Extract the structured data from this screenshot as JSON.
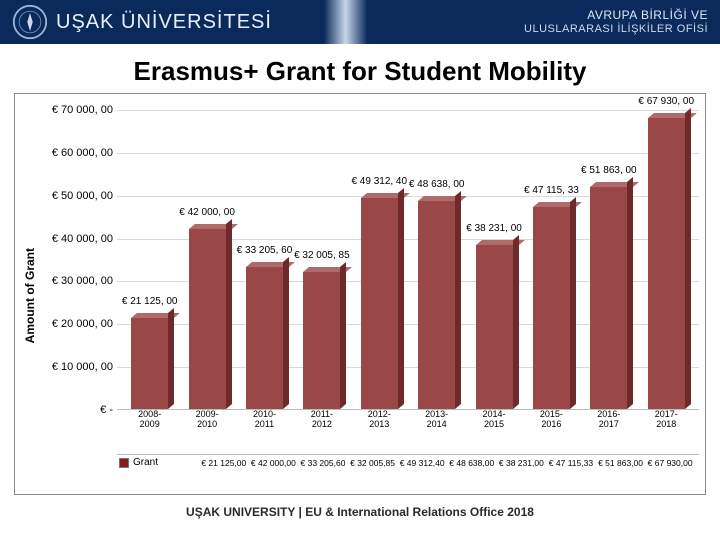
{
  "header": {
    "university_name": "UŞAK ÜNİVERSİTESİ",
    "office_name_line1": "AVRUPA BİRLİĞİ VE",
    "office_name_line2": "ULUSLARARASI İLİŞKİLER OFİSİ",
    "bg_color": "#0a2a5c",
    "text_color": "#e9eef7"
  },
  "title": "Erasmus+ Grant for Student Mobility",
  "footer": "UŞAK UNIVERSITY | EU & International Relations Office 2018",
  "chart": {
    "type": "bar",
    "ylabel": "Amount of Grant",
    "ylim": [
      0,
      70000
    ],
    "ytick_step": 10000,
    "yticks": [
      {
        "v": 0,
        "label": "€  -"
      },
      {
        "v": 10000,
        "label": "€  10 000, 00"
      },
      {
        "v": 20000,
        "label": "€  20 000, 00"
      },
      {
        "v": 30000,
        "label": "€  30 000, 00"
      },
      {
        "v": 40000,
        "label": "€  40 000, 00"
      },
      {
        "v": 50000,
        "label": "€  50 000, 00"
      },
      {
        "v": 60000,
        "label": "€  60 000, 00"
      },
      {
        "v": 70000,
        "label": "€  70 000, 00"
      }
    ],
    "grid_color": "#d9d9d9",
    "background_color": "#ffffff",
    "series_label": "Grant",
    "legend_color": "#8b1a1a",
    "bar_face_color": "#9a4747",
    "bar_top_color": "#b06a6a",
    "bar_side_color": "#6e2a2a",
    "label_prefix": "€  ",
    "data": [
      {
        "period_a": "2008-",
        "period_b": "2009",
        "value": 21125.0,
        "label": "€  21 125, 00",
        "legend": "€ 21 125,00"
      },
      {
        "period_a": "2009-",
        "period_b": "2010",
        "value": 42000.0,
        "label": "€  42 000, 00",
        "legend": "€ 42 000,00"
      },
      {
        "period_a": "2010-",
        "period_b": "2011",
        "value": 33205.6,
        "label": "€  33 205, 60",
        "legend": "€ 33 205,60"
      },
      {
        "period_a": "2011-",
        "period_b": "2012",
        "value": 32005.85,
        "label": "€  32 005, 85",
        "legend": "€ 32 005,85"
      },
      {
        "period_a": "2012-",
        "period_b": "2013",
        "value": 49312.4,
        "label": "€  49 312, 40",
        "legend": "€ 49 312,40"
      },
      {
        "period_a": "2013-",
        "period_b": "2014",
        "value": 48638.0,
        "label": "€  48 638, 00",
        "legend": "€ 48 638,00"
      },
      {
        "period_a": "2014-",
        "period_b": "2015",
        "value": 38231.0,
        "label": "€  38 231, 00",
        "legend": "€ 38 231,00"
      },
      {
        "period_a": "2015-",
        "period_b": "2016",
        "value": 47115.33,
        "label": "€  47 115, 33",
        "legend": "€ 47 115,33"
      },
      {
        "period_a": "2016-",
        "period_b": "2017",
        "value": 51863.0,
        "label": "€  51 863, 00",
        "legend": "€ 51 863,00"
      },
      {
        "period_a": "2017-",
        "period_b": "2018",
        "value": 67930.0,
        "label": "€  67 930, 00",
        "legend": "€ 67 930,00"
      }
    ]
  }
}
